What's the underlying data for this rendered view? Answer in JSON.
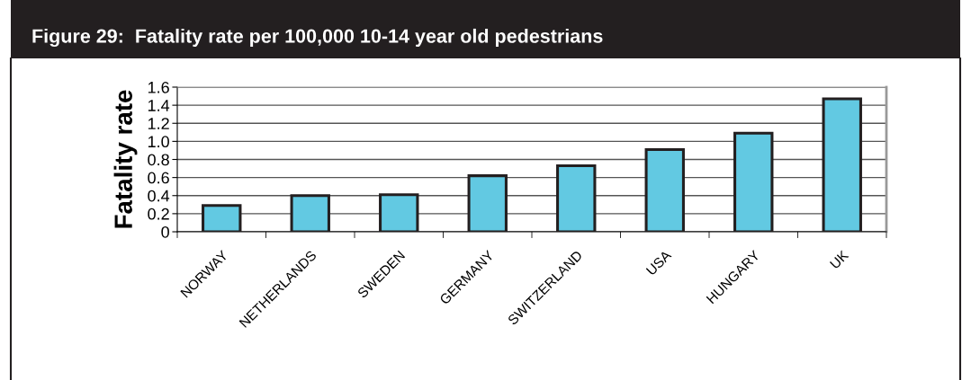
{
  "chart_data": {
    "type": "bar",
    "title": "Figure 29:  Fatality rate per 100,000 10-14 year old pedestrians",
    "ylabel": "Fatality rate",
    "categories": [
      "NORWAY",
      "NETHERLANDS",
      "SWEDEN",
      "GERMANY",
      "SWITZERLAND",
      "USA",
      "HUNGARY",
      "UK"
    ],
    "values": [
      0.29,
      0.4,
      0.41,
      0.62,
      0.73,
      0.91,
      1.09,
      1.47
    ],
    "color": "#62c9e2",
    "ylim": [
      0,
      1.6
    ],
    "yticks": [
      {
        "value": 0,
        "label": "0"
      },
      {
        "value": 0.2,
        "label": "0.2"
      },
      {
        "value": 0.4,
        "label": "0.4"
      },
      {
        "value": 0.6,
        "label": "0.6"
      },
      {
        "value": 0.8,
        "label": "0.8"
      },
      {
        "value": 1.0,
        "label": "1.0"
      },
      {
        "value": 1.2,
        "label": "1.2"
      },
      {
        "value": 1.4,
        "label": "1.4"
      },
      {
        "value": 1.6,
        "label": "1.6"
      }
    ],
    "grid": "y"
  }
}
